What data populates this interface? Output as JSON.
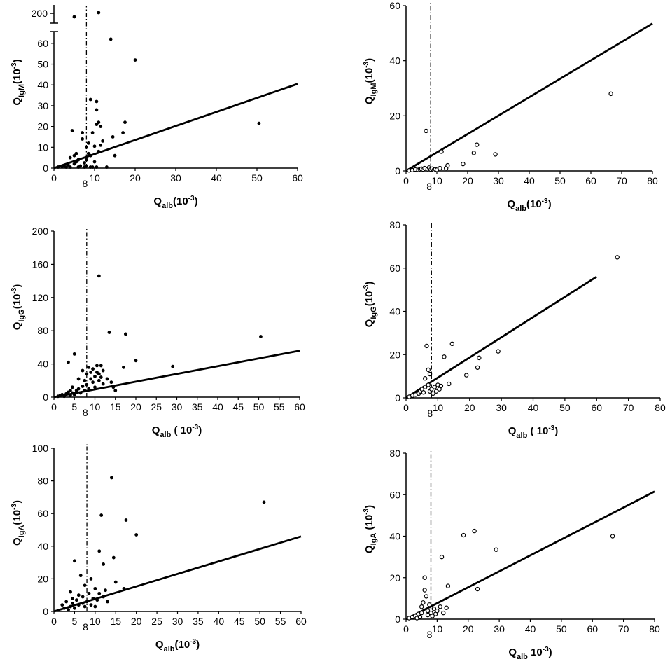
{
  "chart_data": [
    {
      "id": "igm-filled",
      "type": "scatter",
      "marker": "filled",
      "xlabel": {
        "q": "Q",
        "sub": "alb",
        "pre": "(10",
        "sup": "-3",
        "post": ")"
      },
      "ylabel": {
        "q": "Q",
        "sub": "IgM",
        "pre": "(10",
        "sup": "-3",
        "post": ")"
      },
      "xlim": [
        0,
        60
      ],
      "xticks": [
        0,
        10,
        20,
        30,
        40,
        50,
        60
      ],
      "ylim": [
        0,
        65
      ],
      "yticks": [
        0,
        10,
        20,
        30,
        40,
        50,
        60
      ],
      "ybreak": {
        "label": "200",
        "points": [
          [
            5,
            200
          ],
          [
            11,
            201
          ]
        ]
      },
      "cutoff": {
        "x": 8,
        "label": "8"
      },
      "fit_line": [
        [
          0,
          0
        ],
        [
          60,
          40.5
        ]
      ],
      "points": [
        [
          1,
          0.5
        ],
        [
          2,
          0.8
        ],
        [
          2.5,
          1
        ],
        [
          3,
          0.5
        ],
        [
          3.5,
          1.5
        ],
        [
          4,
          0.5
        ],
        [
          4,
          5
        ],
        [
          4.5,
          18
        ],
        [
          5,
          2
        ],
        [
          5,
          6
        ],
        [
          5.5,
          3
        ],
        [
          5.5,
          7
        ],
        [
          6,
          0.5
        ],
        [
          6,
          4
        ],
        [
          6.5,
          1
        ],
        [
          7,
          14
        ],
        [
          7,
          17
        ],
        [
          7.5,
          0.5
        ],
        [
          7.5,
          2.5
        ],
        [
          8,
          1
        ],
        [
          8,
          4
        ],
        [
          8,
          10
        ],
        [
          8.5,
          7
        ],
        [
          8.5,
          12
        ],
        [
          9,
          0.5
        ],
        [
          9,
          6
        ],
        [
          9,
          33
        ],
        [
          9.5,
          17
        ],
        [
          9.5,
          0.5
        ],
        [
          10,
          3
        ],
        [
          10,
          10.5
        ],
        [
          10.5,
          0.5
        ],
        [
          10.5,
          21
        ],
        [
          10.5,
          28
        ],
        [
          10.5,
          32
        ],
        [
          11,
          8
        ],
        [
          11,
          22
        ],
        [
          11.5,
          11
        ],
        [
          11.5,
          20
        ],
        [
          12,
          13
        ],
        [
          13,
          0.5
        ],
        [
          14,
          62
        ],
        [
          14.5,
          15
        ],
        [
          15,
          6
        ],
        [
          17,
          17
        ],
        [
          17.5,
          22
        ],
        [
          20,
          52
        ],
        [
          50.5,
          21.5
        ]
      ]
    },
    {
      "id": "igm-open",
      "type": "scatter",
      "marker": "open",
      "xlabel": {
        "q": "Q",
        "sub": "alb",
        "pre": "(10",
        "sup": "-3",
        "post": ")"
      },
      "ylabel": {
        "q": "Q",
        "sub": "IgM",
        "pre": "(10",
        "sup": "-3",
        "post": ")"
      },
      "xlim": [
        0,
        80
      ],
      "xticks": [
        0,
        10,
        20,
        30,
        40,
        50,
        60,
        70,
        80
      ],
      "ylim": [
        0,
        60
      ],
      "yticks": [
        0,
        20,
        40,
        60
      ],
      "cutoff": {
        "x": 8,
        "label": "8"
      },
      "fit_line": [
        [
          0,
          0
        ],
        [
          80,
          53.5
        ]
      ],
      "points": [
        [
          1,
          0.2
        ],
        [
          2,
          0.3
        ],
        [
          3,
          0.5
        ],
        [
          4,
          0.4
        ],
        [
          4.5,
          0.6
        ],
        [
          5,
          0.8
        ],
        [
          5.5,
          0.5
        ],
        [
          6,
          1
        ],
        [
          6.5,
          14.5
        ],
        [
          7,
          0.6
        ],
        [
          7.5,
          1.2
        ],
        [
          8,
          0.5
        ],
        [
          8.5,
          0.8
        ],
        [
          9,
          0.3
        ],
        [
          9.5,
          0.6
        ],
        [
          10,
          0.4
        ],
        [
          11,
          1
        ],
        [
          11.5,
          7
        ],
        [
          13,
          1
        ],
        [
          13.5,
          2
        ],
        [
          18.5,
          2.5
        ],
        [
          22,
          6.5
        ],
        [
          23,
          9.5
        ],
        [
          29,
          6
        ],
        [
          66.5,
          28
        ]
      ]
    },
    {
      "id": "igg-filled",
      "type": "scatter",
      "marker": "filled",
      "xlabel": {
        "q": "Q",
        "sub": "alb",
        "pre": " (",
        "sup": "",
        "post": " 10",
        "post_sup": "-3",
        "close": ")"
      },
      "ylabel": {
        "q": "Q",
        "sub": "IgG",
        "pre": "(10",
        "sup": "-3",
        "post": ")"
      },
      "xlim": [
        0,
        60
      ],
      "xticks": [
        0,
        5,
        10,
        15,
        20,
        25,
        30,
        35,
        40,
        45,
        50,
        55,
        60
      ],
      "ylim": [
        0,
        200
      ],
      "yticks": [
        0,
        40,
        80,
        120,
        160,
        200
      ],
      "cutoff": {
        "x": 8,
        "label": "8"
      },
      "fit_line": [
        [
          0,
          0
        ],
        [
          60,
          56
        ]
      ],
      "points": [
        [
          1,
          1
        ],
        [
          1.5,
          2
        ],
        [
          2,
          3
        ],
        [
          2.5,
          1
        ],
        [
          3,
          4
        ],
        [
          3.5,
          6
        ],
        [
          3.5,
          42
        ],
        [
          4,
          8
        ],
        [
          4,
          2
        ],
        [
          4.5,
          5
        ],
        [
          4.5,
          12
        ],
        [
          5,
          52
        ],
        [
          5,
          3
        ],
        [
          5.5,
          8
        ],
        [
          6,
          10
        ],
        [
          6,
          22
        ],
        [
          6.5,
          5
        ],
        [
          7,
          13
        ],
        [
          7,
          32
        ],
        [
          7.5,
          8
        ],
        [
          7.5,
          20
        ],
        [
          8,
          15
        ],
        [
          8,
          28
        ],
        [
          8.5,
          10
        ],
        [
          8.5,
          36
        ],
        [
          9,
          22
        ],
        [
          9,
          30
        ],
        [
          9.5,
          18
        ],
        [
          9.5,
          34
        ],
        [
          10,
          25
        ],
        [
          10,
          12
        ],
        [
          10.5,
          30
        ],
        [
          10.5,
          38
        ],
        [
          11,
          20
        ],
        [
          11,
          28
        ],
        [
          11,
          146
        ],
        [
          11.5,
          24
        ],
        [
          11.5,
          38
        ],
        [
          12,
          16
        ],
        [
          12,
          32
        ],
        [
          13,
          22
        ],
        [
          13.5,
          78
        ],
        [
          14,
          18
        ],
        [
          14.5,
          12
        ],
        [
          15,
          8
        ],
        [
          17,
          36
        ],
        [
          17.5,
          76
        ],
        [
          20,
          44
        ],
        [
          29,
          37
        ],
        [
          50.5,
          73
        ]
      ]
    },
    {
      "id": "igg-open",
      "type": "scatter",
      "marker": "open",
      "xlabel": {
        "q": "Q",
        "sub": "alb",
        "pre": " (",
        "sup": "",
        "post": " 10",
        "post_sup": "-3",
        "close": ")"
      },
      "ylabel": {
        "q": "Q",
        "sub": "IgG",
        "pre": "(10",
        "sup": "-3",
        "post": ")"
      },
      "xlim": [
        0,
        80
      ],
      "xticks": [
        0,
        10,
        20,
        30,
        40,
        50,
        60,
        70,
        80
      ],
      "ylim": [
        0,
        80
      ],
      "yticks": [
        0,
        20,
        40,
        60,
        80
      ],
      "cutoff": {
        "x": 8,
        "label": "8"
      },
      "fit_line": [
        [
          0,
          0
        ],
        [
          60,
          56
        ]
      ],
      "points": [
        [
          1,
          0.5
        ],
        [
          2,
          1
        ],
        [
          3,
          1.5
        ],
        [
          4,
          2
        ],
        [
          4.5,
          3
        ],
        [
          5,
          4
        ],
        [
          5.5,
          2.5
        ],
        [
          6,
          5
        ],
        [
          6,
          9
        ],
        [
          6.5,
          24
        ],
        [
          7,
          6
        ],
        [
          7,
          13
        ],
        [
          7.5,
          3
        ],
        [
          7.5,
          11
        ],
        [
          8,
          4
        ],
        [
          8.5,
          2
        ],
        [
          9,
          5
        ],
        [
          9.5,
          3
        ],
        [
          10,
          6
        ],
        [
          10.5,
          4
        ],
        [
          11,
          5.5
        ],
        [
          12,
          19
        ],
        [
          13.5,
          6.5
        ],
        [
          14.5,
          25
        ],
        [
          19,
          10.5
        ],
        [
          22.5,
          14
        ],
        [
          23,
          18.5
        ],
        [
          29,
          21.5
        ],
        [
          66.5,
          65
        ]
      ]
    },
    {
      "id": "iga-filled",
      "type": "scatter",
      "marker": "filled",
      "xlabel": {
        "q": "Q",
        "sub": "alb",
        "pre": "(10",
        "sup": "-3",
        "post": ")"
      },
      "ylabel": {
        "q": "Q",
        "sub": "IgA",
        "pre": "(10",
        "sup": "-3",
        "post": ")"
      },
      "xlim": [
        0,
        60
      ],
      "xticks": [
        0,
        5,
        10,
        15,
        20,
        25,
        30,
        35,
        40,
        45,
        50,
        55,
        60
      ],
      "ylim": [
        0,
        100
      ],
      "yticks": [
        0,
        20,
        40,
        60,
        80,
        100
      ],
      "cutoff": {
        "x": 8,
        "label": "8"
      },
      "fit_line": [
        [
          0,
          0
        ],
        [
          60,
          46
        ]
      ],
      "points": [
        [
          2,
          4
        ],
        [
          2.5,
          2
        ],
        [
          3,
          6
        ],
        [
          3.5,
          1
        ],
        [
          4,
          3
        ],
        [
          4,
          12
        ],
        [
          4.5,
          5
        ],
        [
          4.5,
          8
        ],
        [
          5,
          31
        ],
        [
          5,
          2
        ],
        [
          5.5,
          7
        ],
        [
          6,
          4
        ],
        [
          6,
          10
        ],
        [
          6.5,
          22
        ],
        [
          7,
          5
        ],
        [
          7,
          9
        ],
        [
          7.5,
          3
        ],
        [
          7.5,
          16
        ],
        [
          8,
          6
        ],
        [
          8.5,
          11
        ],
        [
          9,
          4
        ],
        [
          9,
          20
        ],
        [
          9.5,
          8
        ],
        [
          10,
          14
        ],
        [
          10,
          3
        ],
        [
          10.5,
          7
        ],
        [
          11,
          37
        ],
        [
          11,
          11
        ],
        [
          11.5,
          59
        ],
        [
          12,
          29
        ],
        [
          12,
          9
        ],
        [
          12.5,
          13
        ],
        [
          13,
          6
        ],
        [
          14,
          82
        ],
        [
          14.5,
          33
        ],
        [
          15,
          18
        ],
        [
          17,
          14
        ],
        [
          17.5,
          56
        ],
        [
          20,
          47
        ],
        [
          51,
          67
        ]
      ]
    },
    {
      "id": "iga-open",
      "type": "scatter",
      "marker": "open",
      "xlabel": {
        "q": "Q",
        "sub": "alb",
        "pre": " ",
        "sup": "",
        "post": "10",
        "post_sup": "-3",
        "close": ")"
      },
      "ylabel": {
        "q": "Q",
        "sub": "IgA",
        "pre": " (",
        "sup": "",
        "post": "10",
        "post_sup": "-3",
        "close": ")"
      },
      "xlim": [
        0,
        80
      ],
      "xticks": [
        0,
        10,
        20,
        30,
        40,
        50,
        60,
        70,
        80
      ],
      "ylim": [
        0,
        80
      ],
      "yticks": [
        0,
        20,
        40,
        60,
        80
      ],
      "cutoff": {
        "x": 8,
        "label": "8"
      },
      "fit_line": [
        [
          0,
          0
        ],
        [
          80,
          61.5
        ]
      ],
      "points": [
        [
          1,
          0.5
        ],
        [
          2,
          1
        ],
        [
          3,
          1.5
        ],
        [
          3.5,
          0.5
        ],
        [
          4,
          2.5
        ],
        [
          4.5,
          1
        ],
        [
          5,
          3
        ],
        [
          5,
          6
        ],
        [
          5.5,
          8
        ],
        [
          6,
          20
        ],
        [
          6,
          14
        ],
        [
          6.5,
          11
        ],
        [
          7,
          4
        ],
        [
          7,
          2
        ],
        [
          7.5,
          7
        ],
        [
          8,
          3
        ],
        [
          8.5,
          1.5
        ],
        [
          9,
          5
        ],
        [
          9.5,
          2.5
        ],
        [
          10,
          4
        ],
        [
          11,
          6
        ],
        [
          11.5,
          30
        ],
        [
          12,
          3
        ],
        [
          13,
          5.5
        ],
        [
          13.5,
          16
        ],
        [
          18.5,
          40.5
        ],
        [
          22,
          42.5
        ],
        [
          23,
          14.5
        ],
        [
          29,
          33.5
        ],
        [
          66.5,
          40
        ]
      ]
    }
  ]
}
